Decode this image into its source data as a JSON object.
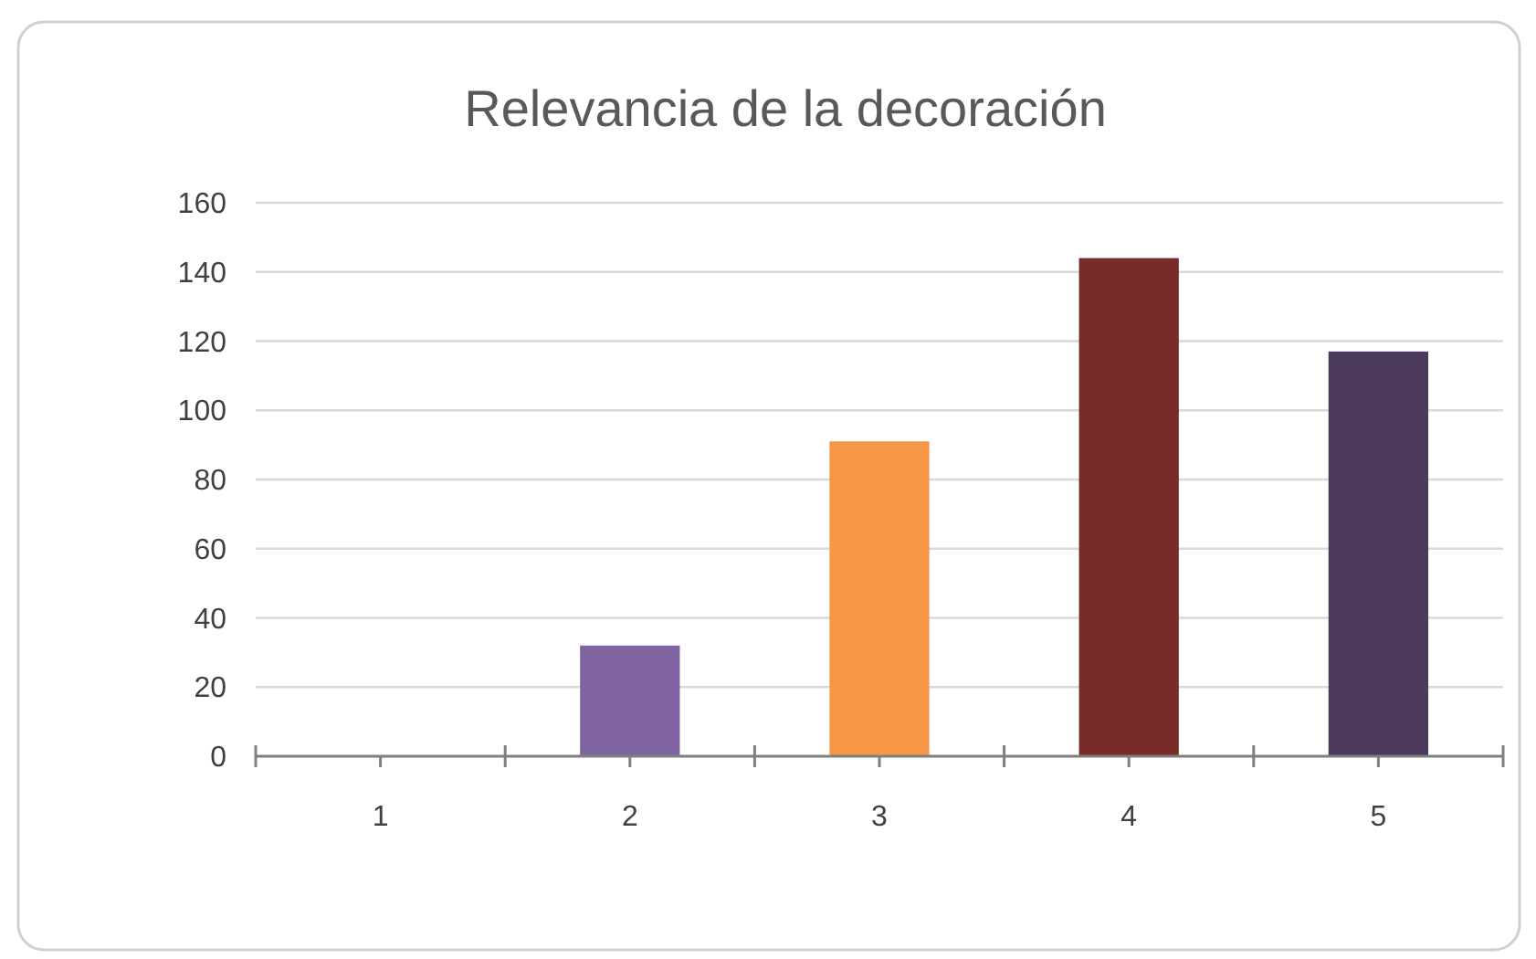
{
  "chart_data": {
    "type": "bar",
    "title": "Relevancia de la decoración",
    "categories": [
      "1",
      "2",
      "3",
      "4",
      "5"
    ],
    "values": [
      0,
      32,
      91,
      144,
      117
    ],
    "colors": [
      "#8064a2",
      "#8064a2",
      "#f79646",
      "#772c2a",
      "#4b3a5c"
    ],
    "ylim": [
      0,
      160
    ],
    "yticks": [
      0,
      20,
      40,
      60,
      80,
      100,
      120,
      140,
      160
    ],
    "grid": "y"
  }
}
